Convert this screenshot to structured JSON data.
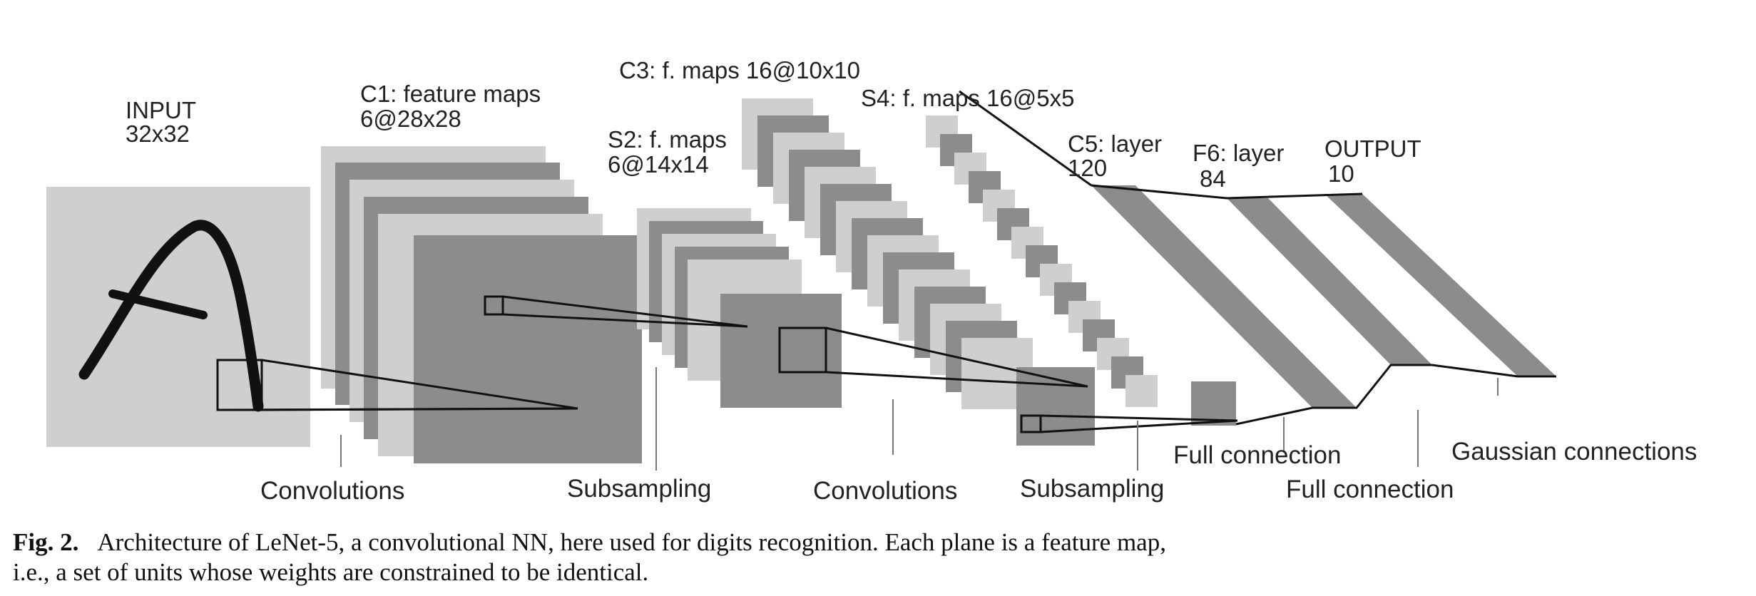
{
  "layers": [
    {
      "name": "INPUT",
      "size": "32x32"
    },
    {
      "name": "C1: feature maps",
      "size": "6@28x28"
    },
    {
      "name": "S2: f. maps",
      "size": "6@14x14"
    },
    {
      "name": "C3: f. maps 16@10x10",
      "size": ""
    },
    {
      "name": "S4: f. maps 16@5x5",
      "size": ""
    },
    {
      "name": "C5: layer",
      "size": "120"
    },
    {
      "name": "F6: layer",
      "size": "84"
    },
    {
      "name": "OUTPUT",
      "size": "10"
    }
  ],
  "operations": [
    "Convolutions",
    "Subsampling",
    "Convolutions",
    "Subsampling",
    "Full connection",
    "Full connection",
    "Gaussian connections"
  ],
  "caption": {
    "label": "Fig. 2.",
    "text": "Architecture of LeNet-5, a convolutional NN, here used for digits recognition. Each plane is a feature map, i.e., a set of units whose weights are constrained to be identical."
  },
  "colors": {
    "light": "#cfcfcf",
    "dark": "#8c8c8c",
    "stroke": "#111111"
  }
}
